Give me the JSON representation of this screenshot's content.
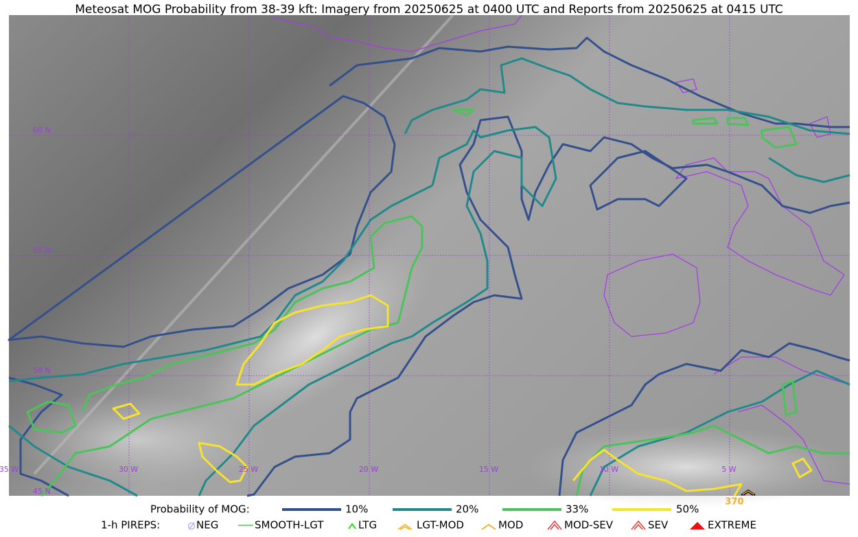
{
  "title": "Meteosat MOG Probability from 38-39 kft: Imagery from 20250625 at 0400 UTC and Reports from 20250625 at 0415 UTC",
  "map": {
    "lat_labels": [
      "60 N",
      "55 N",
      "50 N",
      "45 N"
    ],
    "lon_labels": [
      "35 W",
      "30 W",
      "25 W",
      "20 W",
      "15 W",
      "10 W",
      "5 W"
    ],
    "report_labels": [
      "370"
    ]
  },
  "legend": {
    "probability": {
      "title": "Probability of MOG:",
      "items": [
        "10%",
        "20%",
        "33%",
        "50%"
      ]
    },
    "pireps": {
      "title": "1-h PIREPS:",
      "items": [
        "NEG",
        "SMOOTH-LGT",
        "LTG",
        "LGT-MOD",
        "MOD",
        "MOD-SEV",
        "SEV",
        "EXTREME"
      ]
    }
  }
}
